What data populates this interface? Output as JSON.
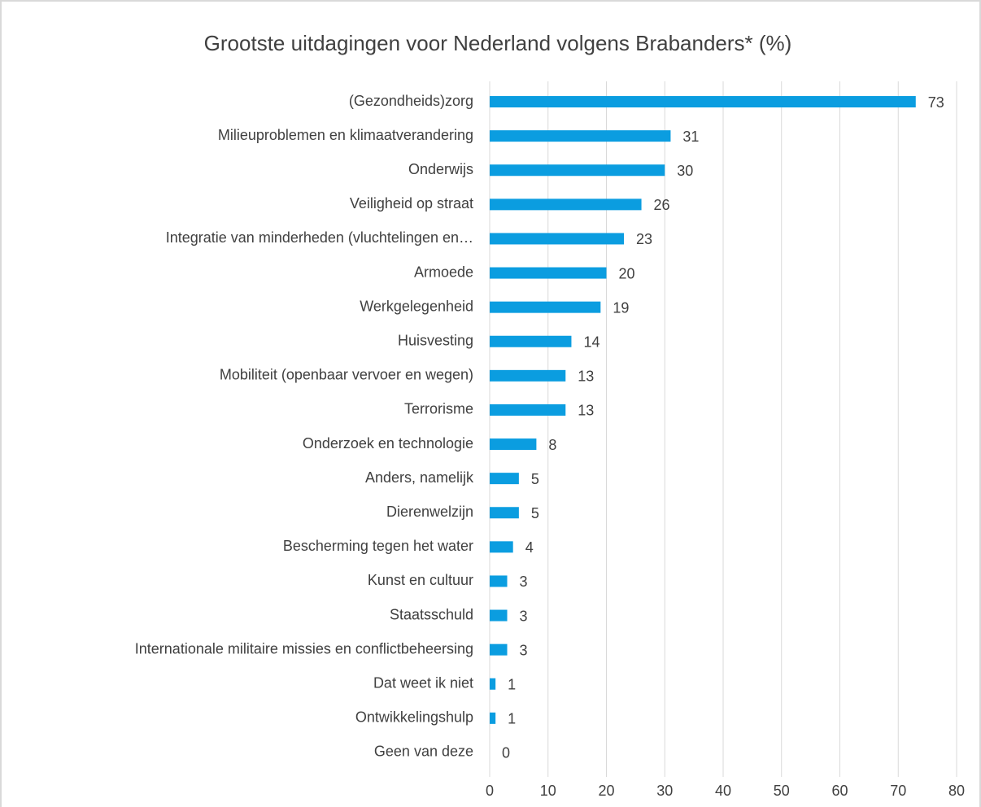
{
  "chart_data": {
    "type": "bar",
    "orientation": "horizontal",
    "title": "Grootste uitdagingen voor Nederland volgens Brabanders* (%)",
    "categories": [
      "(Gezondheids)zorg",
      "Milieuproblemen en klimaatverandering",
      "Onderwijs",
      "Veiligheid op straat",
      "Integratie van minderheden (vluchtelingen en…",
      "Armoede",
      "Werkgelegenheid",
      "Huisvesting",
      "Mobiliteit (openbaar vervoer en wegen)",
      "Terrorisme",
      "Onderzoek en technologie",
      "Anders, namelijk",
      "Dierenwelzijn",
      "Bescherming tegen het water",
      "Kunst en cultuur",
      "Staatsschuld",
      "Internationale militaire missies en conflictbeheersing",
      "Dat weet ik niet",
      "Ontwikkelingshulp",
      "Geen van deze"
    ],
    "values": [
      73,
      31,
      30,
      26,
      23,
      20,
      19,
      14,
      13,
      13,
      8,
      5,
      5,
      4,
      3,
      3,
      3,
      1,
      1,
      0
    ],
    "color": "#0b9de0",
    "xlim": [
      0,
      80
    ],
    "xticks": [
      0,
      10,
      20,
      30,
      40,
      50,
      60,
      70,
      80
    ],
    "grid": true
  }
}
